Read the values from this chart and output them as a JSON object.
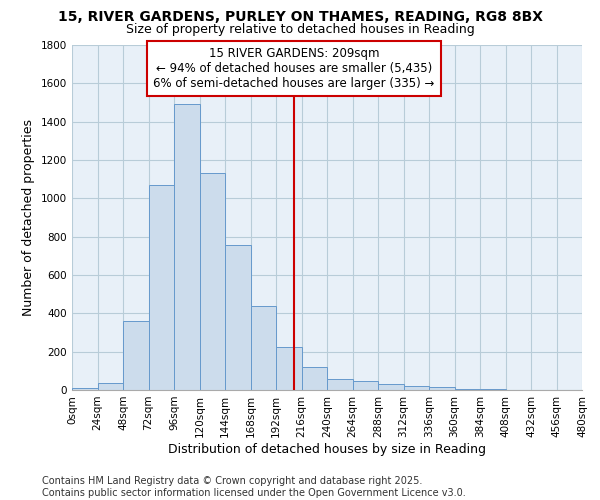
{
  "title": "15, RIVER GARDENS, PURLEY ON THAMES, READING, RG8 8BX",
  "subtitle": "Size of property relative to detached houses in Reading",
  "xlabel": "Distribution of detached houses by size in Reading",
  "ylabel": "Number of detached properties",
  "bin_edges": [
    0,
    24,
    48,
    72,
    96,
    120,
    144,
    168,
    192,
    216,
    240,
    264,
    288,
    312,
    336,
    360,
    384,
    408,
    432,
    456,
    480
  ],
  "bar_heights": [
    10,
    35,
    360,
    1070,
    1490,
    1130,
    755,
    440,
    225,
    120,
    60,
    45,
    30,
    20,
    15,
    5,
    3,
    2,
    1,
    1
  ],
  "bar_color": "#ccdcec",
  "bar_edgecolor": "#6699cc",
  "grid_color": "#b8ccd8",
  "background_color": "#e8f0f8",
  "fig_background": "#ffffff",
  "vline_x": 209,
  "vline_color": "#cc0000",
  "annotation_text": "15 RIVER GARDENS: 209sqm\n← 94% of detached houses are smaller (5,435)\n6% of semi-detached houses are larger (335) →",
  "annotation_box_color": "#cc0000",
  "ylim": [
    0,
    1800
  ],
  "yticks": [
    0,
    200,
    400,
    600,
    800,
    1000,
    1200,
    1400,
    1600,
    1800
  ],
  "footer1": "Contains HM Land Registry data © Crown copyright and database right 2025.",
  "footer2": "Contains public sector information licensed under the Open Government Licence v3.0.",
  "title_fontsize": 10,
  "subtitle_fontsize": 9,
  "tick_fontsize": 7.5,
  "label_fontsize": 9,
  "annotation_fontsize": 8.5,
  "footer_fontsize": 7
}
